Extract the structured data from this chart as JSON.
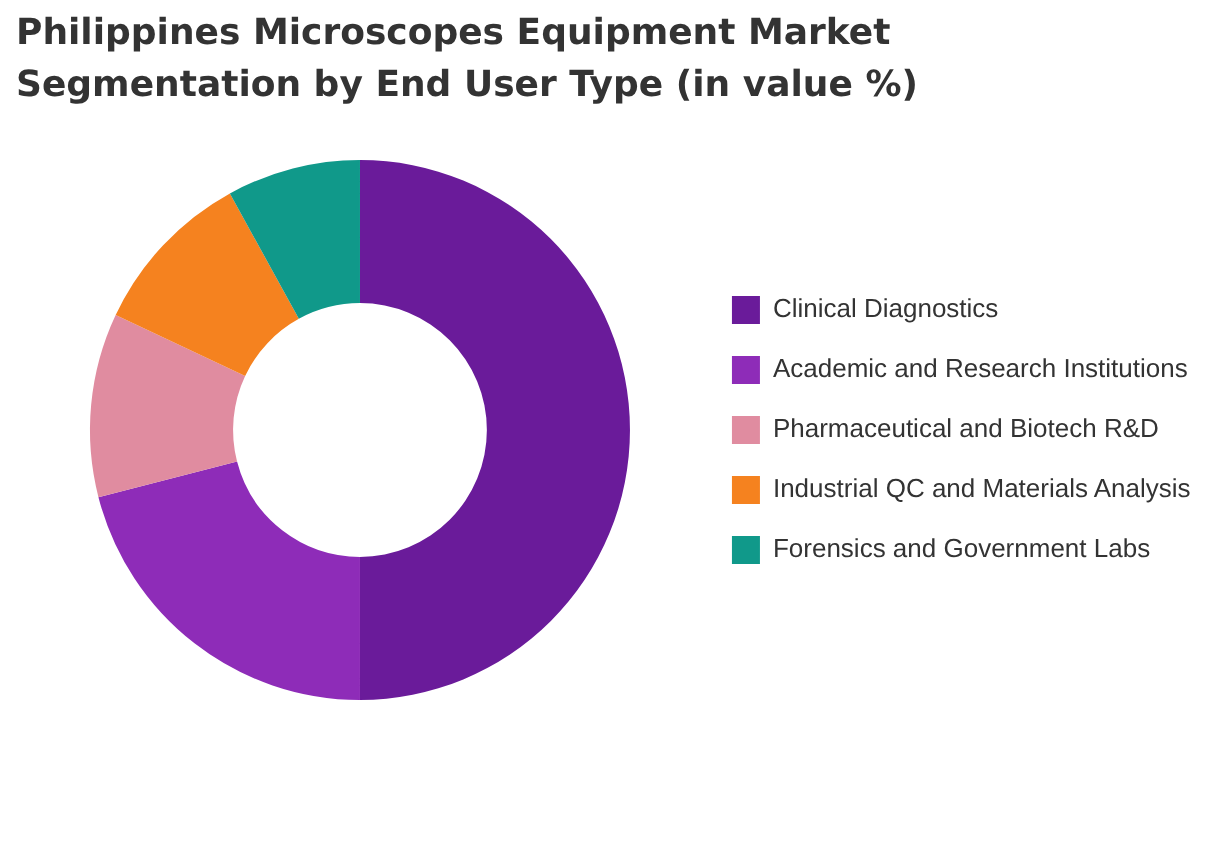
{
  "chart_data": {
    "type": "donut",
    "title": "Philippines Microscopes Equipment Market Segmentation by End User Type (in value %)",
    "categories": [
      "Clinical Diagnostics",
      "Academic and Research Institutions",
      "Pharmaceutical and Biotech R&D",
      "Industrial QC and Materials Analysis",
      "Forensics and Government Labs"
    ],
    "values": [
      50,
      21,
      11,
      10,
      8
    ],
    "colors": [
      "#6a1b9a",
      "#8e2cb8",
      "#e08ca0",
      "#f5821f",
      "#10998a"
    ],
    "legend": "right"
  }
}
